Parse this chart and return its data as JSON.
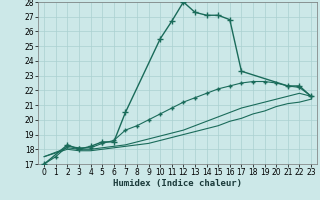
{
  "title": "",
  "xlabel": "Humidex (Indice chaleur)",
  "xlim": [
    -0.5,
    23.5
  ],
  "ylim": [
    17,
    28
  ],
  "yticks": [
    17,
    18,
    19,
    20,
    21,
    22,
    23,
    24,
    25,
    26,
    27,
    28
  ],
  "xticks": [
    0,
    1,
    2,
    3,
    4,
    5,
    6,
    7,
    8,
    9,
    10,
    11,
    12,
    13,
    14,
    15,
    16,
    17,
    18,
    19,
    20,
    21,
    22,
    23
  ],
  "bg_color": "#cce8e8",
  "line_color": "#1a6b5a",
  "grid_color": "#aad0d0",
  "line1_x": [
    0,
    2,
    3,
    4,
    5,
    6,
    7,
    10,
    11,
    12,
    13,
    14,
    15,
    16,
    17,
    21,
    22,
    23
  ],
  "line1_y": [
    17.0,
    18.3,
    18.0,
    18.2,
    18.5,
    18.5,
    20.5,
    25.5,
    26.7,
    28.0,
    27.3,
    27.1,
    27.1,
    26.8,
    23.3,
    22.3,
    22.3,
    21.6
  ],
  "line2_x": [
    0,
    2,
    3,
    4,
    5,
    6,
    7,
    8,
    9,
    10,
    11,
    12,
    13,
    14,
    15,
    16,
    17,
    18,
    19,
    20,
    21,
    22,
    23
  ],
  "line2_y": [
    17.5,
    18.1,
    18.0,
    18.0,
    18.1,
    18.2,
    18.3,
    18.5,
    18.7,
    18.9,
    19.1,
    19.3,
    19.6,
    19.9,
    20.2,
    20.5,
    20.8,
    21.0,
    21.2,
    21.4,
    21.6,
    21.8,
    21.6
  ],
  "line3_x": [
    0,
    2,
    3,
    4,
    5,
    6,
    7,
    8,
    9,
    10,
    11,
    12,
    13,
    14,
    15,
    16,
    17,
    18,
    19,
    20,
    21,
    22,
    23
  ],
  "line3_y": [
    17.5,
    18.0,
    17.9,
    17.9,
    18.0,
    18.1,
    18.2,
    18.3,
    18.4,
    18.6,
    18.8,
    19.0,
    19.2,
    19.4,
    19.6,
    19.9,
    20.1,
    20.4,
    20.6,
    20.9,
    21.1,
    21.2,
    21.4
  ],
  "line4_x": [
    0,
    1,
    2,
    3,
    4,
    5,
    6,
    7,
    8,
    9,
    10,
    11,
    12,
    13,
    14,
    15,
    16,
    17,
    18,
    19,
    20,
    21,
    22,
    23
  ],
  "line4_y": [
    17.0,
    17.5,
    18.2,
    18.1,
    18.1,
    18.4,
    18.6,
    19.3,
    19.6,
    20.0,
    20.4,
    20.8,
    21.2,
    21.5,
    21.8,
    22.1,
    22.3,
    22.5,
    22.6,
    22.6,
    22.5,
    22.3,
    22.2,
    21.6
  ]
}
